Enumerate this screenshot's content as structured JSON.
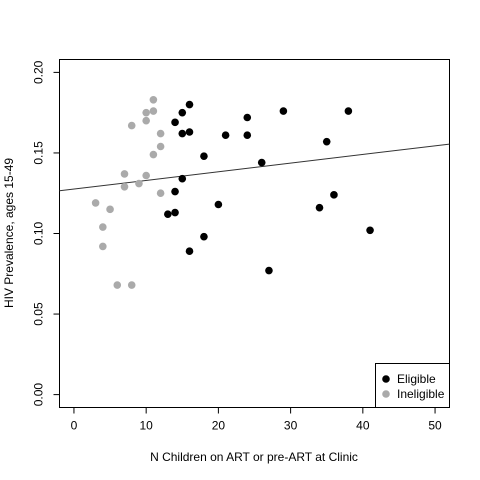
{
  "chart_data": {
    "type": "scatter",
    "xlabel": "N Children on ART or pre-ART at Clinic",
    "ylabel": "HIV Prevalence, ages 15-49",
    "xlim": [
      -2,
      52
    ],
    "ylim": [
      -0.008,
      0.208
    ],
    "xticks": [
      0,
      10,
      20,
      30,
      40,
      50
    ],
    "yticks": [
      0.0,
      0.05,
      0.1,
      0.15,
      0.2
    ],
    "xtick_labels": [
      "0",
      "10",
      "20",
      "30",
      "40",
      "50"
    ],
    "ytick_labels": [
      "0.00",
      "0.05",
      "0.10",
      "0.15",
      "0.20"
    ],
    "legend_position": "bottom-right",
    "series": [
      {
        "name": "Eligible",
        "color": "#000000",
        "points": [
          [
            13,
            0.112
          ],
          [
            14,
            0.113
          ],
          [
            14,
            0.126
          ],
          [
            14,
            0.169
          ],
          [
            15,
            0.134
          ],
          [
            15,
            0.162
          ],
          [
            15,
            0.175
          ],
          [
            16,
            0.163
          ],
          [
            16,
            0.18
          ],
          [
            16,
            0.089
          ],
          [
            18,
            0.148
          ],
          [
            18,
            0.098
          ],
          [
            20,
            0.118
          ],
          [
            21,
            0.161
          ],
          [
            24,
            0.172
          ],
          [
            24,
            0.161
          ],
          [
            26,
            0.144
          ],
          [
            27,
            0.077
          ],
          [
            29,
            0.176
          ],
          [
            34,
            0.116
          ],
          [
            35,
            0.157
          ],
          [
            36,
            0.124
          ],
          [
            38,
            0.176
          ],
          [
            41,
            0.102
          ]
        ]
      },
      {
        "name": "Ineligible",
        "color": "#aaaaaa",
        "points": [
          [
            3,
            0.119
          ],
          [
            4,
            0.104
          ],
          [
            4,
            0.092
          ],
          [
            5,
            0.115
          ],
          [
            6,
            0.068
          ],
          [
            7,
            0.137
          ],
          [
            7,
            0.129
          ],
          [
            8,
            0.167
          ],
          [
            8,
            0.068
          ],
          [
            9,
            0.131
          ],
          [
            10,
            0.136
          ],
          [
            10,
            0.17
          ],
          [
            10,
            0.175
          ],
          [
            11,
            0.176
          ],
          [
            11,
            0.183
          ],
          [
            11,
            0.149
          ],
          [
            12,
            0.162
          ],
          [
            12,
            0.154
          ],
          [
            12,
            0.125
          ]
        ]
      }
    ],
    "trend_line": {
      "x": [
        -2,
        52
      ],
      "y": [
        0.1265,
        0.1555
      ]
    }
  }
}
